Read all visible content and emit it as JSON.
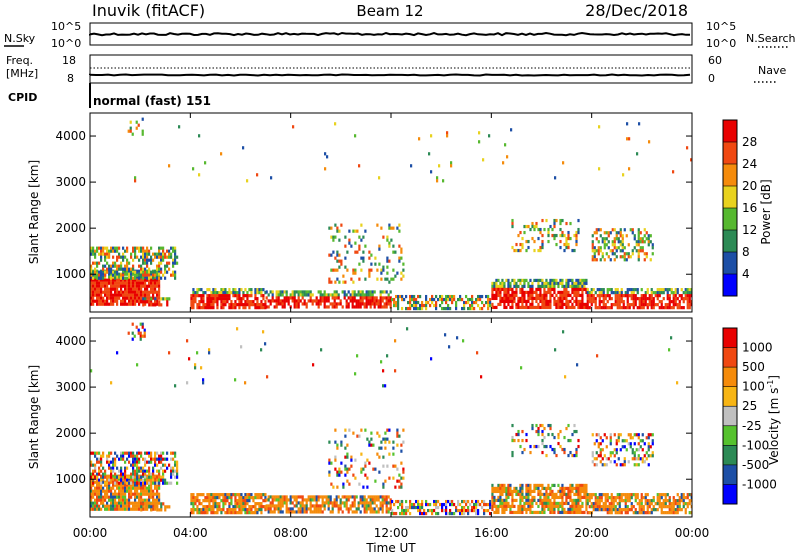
{
  "header": {
    "station": "Inuvik (fitACF)",
    "beam": "Beam 12",
    "date": "28/Dec/2018"
  },
  "top_panels": {
    "nsky_label": "N.Sky",
    "nsky_ticks": [
      "10^5",
      "10^0"
    ],
    "nsearch_label": "N.Search",
    "nsearch_ticks": [
      "10^5",
      "10^0"
    ],
    "freq_label_1": "Freq.",
    "freq_label_2": "[MHz]",
    "freq_ticks": [
      "18",
      "8"
    ],
    "nave_label": "Nave",
    "nave_ticks": [
      "60",
      "0"
    ],
    "cpid_label": "CPID",
    "cpid_text": "normal (fast) 151"
  },
  "x_axis": {
    "ticks": [
      "00:00",
      "04:00",
      "08:00",
      "12:00",
      "16:00",
      "20:00",
      "00:00"
    ],
    "label": "Time UT"
  },
  "colors": {
    "power": [
      "#0000ff",
      "#1d4fa6",
      "#2c8a55",
      "#56b82f",
      "#e8d21e",
      "#f58b0b",
      "#f04811",
      "#e80000"
    ],
    "velocity": [
      "#e80000",
      "#f04811",
      "#f58b0b",
      "#f7b515",
      "#c0c0c0",
      "#56c22e",
      "#2c8a55",
      "#1d4fa6",
      "#0000ff"
    ]
  },
  "chart_data": [
    {
      "type": "heatmap",
      "name": "power",
      "xlabel": "Time UT",
      "ylabel": "Slant Range [km]",
      "xlim": [
        0,
        24
      ],
      "ylim": [
        180,
        4500
      ],
      "y_ticks": [
        1000,
        2000,
        3000,
        4000
      ],
      "colorbar_label": "Power [dB]",
      "colorbar_ticks": [
        "4",
        "8",
        "12",
        "16",
        "20",
        "24",
        "28"
      ]
    },
    {
      "type": "heatmap",
      "name": "velocity",
      "xlabel": "Time UT",
      "ylabel": "Slant Range [km]",
      "xlim": [
        0,
        24
      ],
      "ylim": [
        180,
        4500
      ],
      "y_ticks": [
        1000,
        2000,
        3000,
        4000
      ],
      "colorbar_label": "Velocity [m s^-1]",
      "colorbar_ticks": [
        "1000",
        "500",
        "100",
        "25",
        "-25",
        "-100",
        "-500",
        "-1000"
      ]
    }
  ]
}
